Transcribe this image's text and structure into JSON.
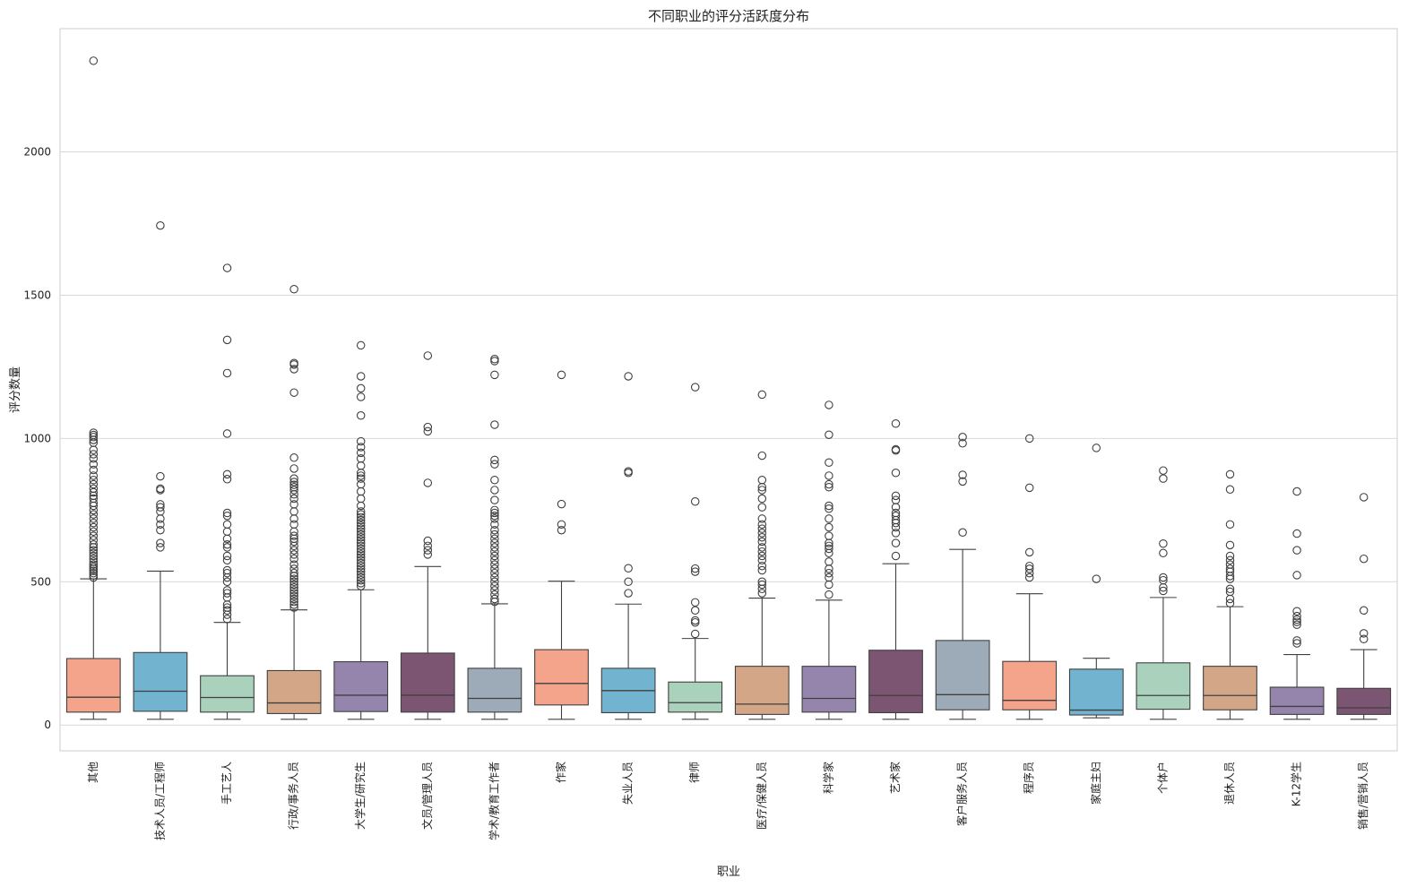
{
  "chart_data": {
    "type": "boxplot",
    "title": "不同职业的评分活跃度分布",
    "xlabel": "职业",
    "ylabel": "评分数量",
    "ylim": [
      -90,
      2430
    ],
    "yticks": [
      0,
      500,
      1000,
      1500,
      2000
    ],
    "grid": "y",
    "legend": "none",
    "palette": [
      "#f4a48a",
      "#72b3cf",
      "#a9d1bb",
      "#d3a688",
      "#9584ab",
      "#7b5572",
      "#9daab7"
    ],
    "categories": [
      {
        "name": "其他",
        "color": "#f4a48a",
        "whisker_low": 20,
        "q1": 45,
        "median": 97,
        "q3": 232,
        "whisker_high": 510,
        "outliers": [
          2318,
          1020,
          1012,
          1005,
          995,
          985,
          960,
          945,
          930,
          910,
          890,
          870,
          855,
          840,
          825,
          812,
          800,
          790,
          775,
          765,
          750,
          735,
          720,
          705,
          690,
          675,
          660,
          645,
          630,
          620,
          610,
          600,
          590,
          580,
          570,
          560,
          552,
          545,
          538,
          530,
          522,
          515
        ]
      },
      {
        "name": "技术人员/工程师",
        "color": "#72b3cf",
        "whisker_low": 20,
        "q1": 48,
        "median": 118,
        "q3": 253,
        "whisker_high": 537,
        "outliers": [
          1743,
          868,
          825,
          820,
          770,
          760,
          745,
          720,
          700,
          680,
          635,
          620
        ]
      },
      {
        "name": "手工艺人",
        "color": "#a9d1bb",
        "whisker_low": 20,
        "q1": 45,
        "median": 96,
        "q3": 172,
        "whisker_high": 358,
        "outliers": [
          1595,
          1344,
          1228,
          1017,
          875,
          858,
          740,
          730,
          700,
          675,
          650,
          630,
          620,
          590,
          575,
          540,
          530,
          515,
          500,
          470,
          460,
          445,
          420,
          410,
          400,
          385,
          370
        ]
      },
      {
        "name": "行政/事务人员",
        "color": "#d3a688",
        "whisker_low": 20,
        "q1": 40,
        "median": 77,
        "q3": 190,
        "whisker_high": 402,
        "outliers": [
          1521,
          1263,
          1258,
          1242,
          1160,
          933,
          895,
          860,
          848,
          838,
          830,
          820,
          805,
          790,
          770,
          745,
          720,
          700,
          675,
          660,
          650,
          640,
          625,
          610,
          595,
          580,
          560,
          545,
          530,
          520,
          510,
          500,
          490,
          480,
          470,
          460,
          450,
          440,
          430,
          420,
          410
        ]
      },
      {
        "name": "大学生/研究生",
        "color": "#9584ab",
        "whisker_low": 20,
        "q1": 47,
        "median": 104,
        "q3": 221,
        "whisker_high": 472,
        "outliers": [
          1325,
          1217,
          1175,
          1145,
          1080,
          990,
          970,
          950,
          930,
          905,
          880,
          870,
          860,
          840,
          815,
          790,
          765,
          745,
          735,
          725,
          715,
          705,
          695,
          685,
          675,
          665,
          655,
          645,
          635,
          625,
          615,
          605,
          595,
          585,
          575,
          565,
          555,
          545,
          535,
          525,
          515,
          505,
          495,
          485
        ]
      },
      {
        "name": "文员/管理人员",
        "color": "#7b5572",
        "whisker_low": 20,
        "q1": 45,
        "median": 104,
        "q3": 251,
        "whisker_high": 553,
        "outliers": [
          1289,
          1040,
          1025,
          845,
          643,
          625,
          610,
          595
        ]
      },
      {
        "name": "学术/教育工作者",
        "color": "#9daab7",
        "whisker_low": 20,
        "q1": 45,
        "median": 93,
        "q3": 198,
        "whisker_high": 423,
        "outliers": [
          1277,
          1270,
          1222,
          1048,
          925,
          910,
          855,
          820,
          785,
          750,
          740,
          730,
          720,
          700,
          680,
          665,
          650,
          635,
          620,
          605,
          590,
          575,
          560,
          545,
          530,
          515,
          500,
          485,
          470,
          455,
          440,
          430
        ]
      },
      {
        "name": "作家",
        "color": "#f4a48a",
        "whisker_low": 20,
        "q1": 70,
        "median": 145,
        "q3": 263,
        "whisker_high": 502,
        "outliers": [
          1222,
          771,
          700,
          680
        ]
      },
      {
        "name": "失业人员",
        "color": "#72b3cf",
        "whisker_low": 20,
        "q1": 43,
        "median": 120,
        "q3": 198,
        "whisker_high": 422,
        "outliers": [
          1217,
          885,
          880,
          547,
          500,
          460
        ]
      },
      {
        "name": "律师",
        "color": "#a9d1bb",
        "whisker_low": 20,
        "q1": 45,
        "median": 78,
        "q3": 150,
        "whisker_high": 302,
        "outliers": [
          1179,
          780,
          546,
          535,
          428,
          400,
          365,
          358,
          318
        ]
      },
      {
        "name": "医疗/保健人员",
        "color": "#d3a688",
        "whisker_low": 20,
        "q1": 37,
        "median": 73,
        "q3": 205,
        "whisker_high": 443,
        "outliers": [
          1153,
          940,
          855,
          830,
          820,
          790,
          760,
          720,
          700,
          685,
          670,
          655,
          640,
          620,
          605,
          590,
          575,
          555,
          540,
          500,
          490,
          475,
          460
        ]
      },
      {
        "name": "科学家",
        "color": "#9584ab",
        "whisker_low": 20,
        "q1": 45,
        "median": 93,
        "q3": 205,
        "whisker_high": 436,
        "outliers": [
          1117,
          1013,
          916,
          870,
          840,
          830,
          765,
          755,
          720,
          690,
          660,
          635,
          625,
          615,
          600,
          570,
          545,
          530,
          515,
          490,
          455
        ]
      },
      {
        "name": "艺术家",
        "color": "#7b5572",
        "whisker_low": 20,
        "q1": 43,
        "median": 103,
        "q3": 261,
        "whisker_high": 563,
        "outliers": [
          1052,
          962,
          958,
          880,
          800,
          785,
          760,
          740,
          730,
          715,
          705,
          690,
          670,
          635,
          590
        ]
      },
      {
        "name": "客户服务人员",
        "color": "#9daab7",
        "whisker_low": 20,
        "q1": 53,
        "median": 106,
        "q3": 295,
        "whisker_high": 613,
        "outliers": [
          1005,
          983,
          873,
          850,
          672
        ]
      },
      {
        "name": "程序员",
        "color": "#f4a48a",
        "whisker_low": 20,
        "q1": 53,
        "median": 86,
        "q3": 222,
        "whisker_high": 458,
        "outliers": [
          1000,
          828,
          603,
          555,
          545,
          530,
          515
        ]
      },
      {
        "name": "家庭主妇",
        "color": "#72b3cf",
        "whisker_low": 25,
        "q1": 35,
        "median": 52,
        "q3": 195,
        "whisker_high": 233,
        "outliers": [
          967,
          510
        ]
      },
      {
        "name": "个体户",
        "color": "#a9d1bb",
        "whisker_low": 20,
        "q1": 55,
        "median": 103,
        "q3": 217,
        "whisker_high": 445,
        "outliers": [
          888,
          860,
          633,
          600,
          515,
          505,
          480,
          468
        ]
      },
      {
        "name": "退休人员",
        "color": "#d3a688",
        "whisker_low": 20,
        "q1": 53,
        "median": 103,
        "q3": 205,
        "whisker_high": 413,
        "outliers": [
          875,
          822,
          700,
          628,
          590,
          575,
          560,
          545,
          535,
          520,
          510,
          475,
          465,
          440,
          425
        ]
      },
      {
        "name": "K-12学生",
        "color": "#9584ab",
        "whisker_low": 20,
        "q1": 37,
        "median": 65,
        "q3": 132,
        "whisker_high": 246,
        "outliers": [
          815,
          668,
          610,
          523,
          397,
          380,
          368,
          360,
          350,
          295,
          285
        ]
      },
      {
        "name": "销售/营销人员",
        "color": "#7b5572",
        "whisker_low": 20,
        "q1": 37,
        "median": 60,
        "q3": 128,
        "whisker_high": 263,
        "outliers": [
          795,
          580,
          400,
          320,
          300
        ]
      }
    ]
  }
}
